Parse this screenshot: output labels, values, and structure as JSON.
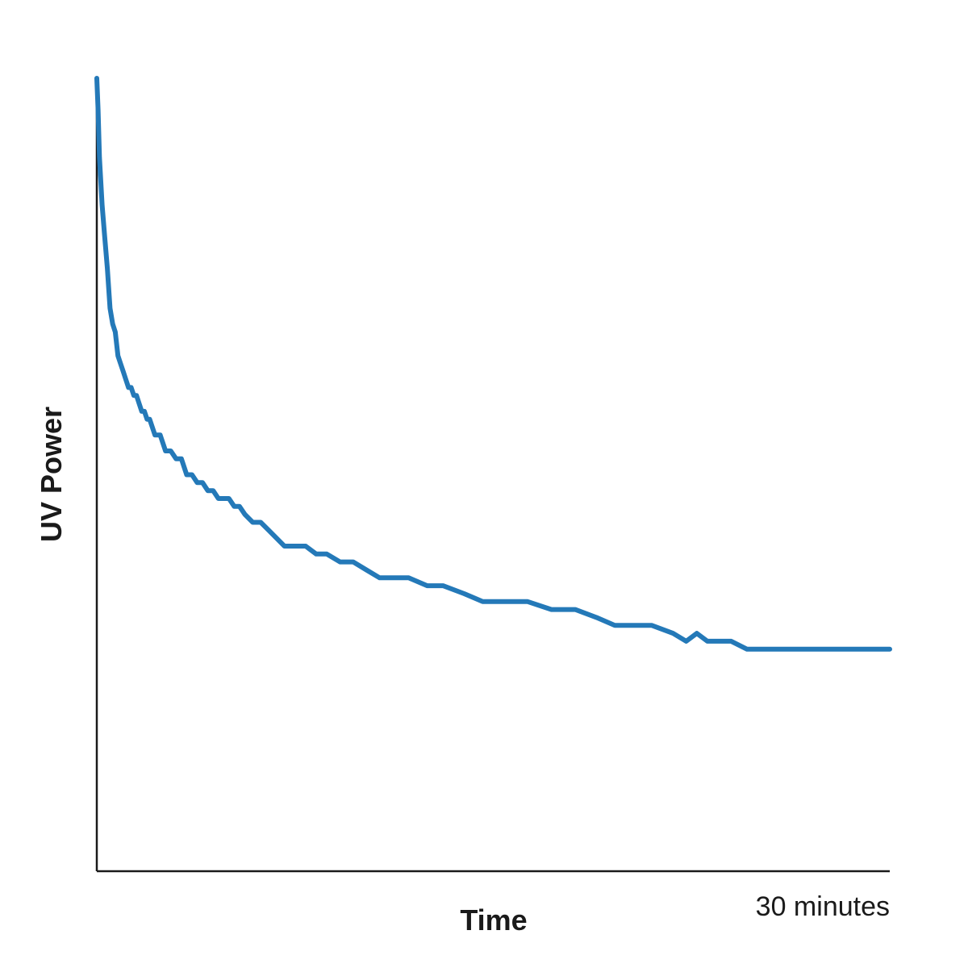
{
  "chart_data": {
    "type": "line",
    "title": "",
    "xlabel": "Time",
    "ylabel": "UV Power",
    "xlim": [
      0,
      30
    ],
    "ylim": [
      0,
      100
    ],
    "x_tick_labels": [
      {
        "x": 30,
        "label": "30 minutes"
      }
    ],
    "grid": false,
    "color": "#2479b8",
    "series": [
      {
        "x": [
          0.0,
          0.05,
          0.1,
          0.2,
          0.3,
          0.4,
          0.5,
          0.6,
          0.7,
          0.8,
          0.9,
          1.0,
          1.1,
          1.2,
          1.3,
          1.4,
          1.5,
          1.6,
          1.7,
          1.8,
          1.9,
          2.0,
          2.2,
          2.4,
          2.6,
          2.8,
          3.0,
          3.2,
          3.4,
          3.6,
          3.8,
          4.0,
          4.2,
          4.4,
          4.6,
          4.8,
          5.0,
          5.2,
          5.4,
          5.6,
          5.9,
          6.2,
          6.5,
          6.8,
          7.1,
          7.5,
          7.9,
          8.3,
          8.7,
          9.2,
          9.7,
          10.2,
          10.7,
          11.2,
          11.8,
          12.5,
          13.1,
          13.9,
          14.6,
          15.4,
          16.3,
          17.2,
          18.1,
          18.9,
          19.6,
          20.3,
          21.0,
          21.8,
          22.3,
          22.7,
          23.1,
          23.5,
          24.0,
          24.6,
          25.4,
          26.3,
          27.3,
          28.4,
          30.0
        ],
        "y": [
          100,
          96,
          90,
          84,
          80,
          76,
          71,
          69,
          68,
          65,
          64,
          63,
          62,
          61,
          61,
          60,
          60,
          59,
          58,
          58,
          57,
          57,
          55,
          55,
          53,
          53,
          52,
          52,
          50,
          50,
          49,
          49,
          48,
          48,
          47,
          47,
          47,
          46,
          46,
          45,
          44,
          44,
          43,
          42,
          41,
          41,
          41,
          40,
          40,
          39,
          39,
          38,
          37,
          37,
          37,
          36,
          36,
          35,
          34,
          34,
          34,
          33,
          33,
          32,
          31,
          31,
          31,
          30,
          29,
          30,
          29,
          29,
          29,
          28,
          28,
          28,
          28,
          28,
          28
        ]
      }
    ]
  }
}
